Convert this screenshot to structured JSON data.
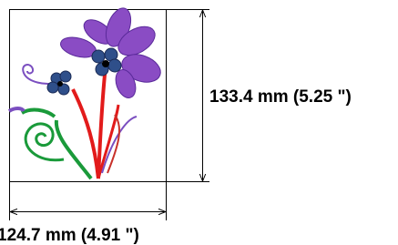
{
  "dimensions": {
    "height_label": "133.4 mm (5.25 \")",
    "width_label": "124.7 mm (4.91 \")"
  }
}
